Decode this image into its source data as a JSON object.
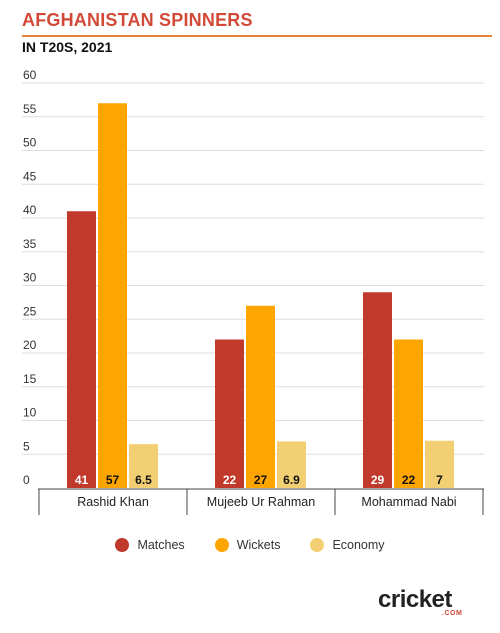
{
  "header": {
    "title": "AFGHANISTAN SPINNERS",
    "subtitle": "IN T20S, 2021"
  },
  "colors": {
    "accent": "#d24a37",
    "rule": "#e8833a",
    "matches": "#c0392b",
    "wickets": "#ffa500",
    "economy": "#f2cf72"
  },
  "logo": {
    "text": "cricket",
    "sub": ".COM"
  },
  "chart_data": {
    "type": "bar",
    "categories": [
      "Rashid Khan",
      "Mujeeb Ur Rahman",
      "Mohammad Nabi"
    ],
    "series": [
      {
        "name": "Matches",
        "values": [
          41,
          22,
          29
        ],
        "labels": [
          "41",
          "22",
          "29"
        ]
      },
      {
        "name": "Wickets",
        "values": [
          57,
          27,
          22
        ],
        "labels": [
          "57",
          "27",
          "22"
        ]
      },
      {
        "name": "Economy",
        "values": [
          6.5,
          6.9,
          7
        ],
        "labels": [
          "6.5",
          "6.9",
          "7"
        ]
      }
    ],
    "yticks": [
      "0",
      "5",
      "10",
      "15",
      "20",
      "25",
      "30",
      "35",
      "40",
      "45",
      "50",
      "55",
      "60"
    ],
    "ylim": [
      0,
      60
    ],
    "grid": true,
    "legend": "bottom"
  }
}
